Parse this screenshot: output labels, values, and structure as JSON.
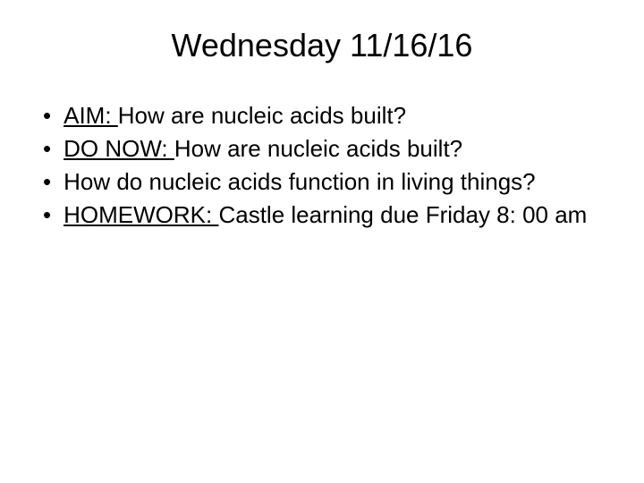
{
  "slide": {
    "title": "Wednesday 11/16/16",
    "bullets": [
      {
        "label": "AIM: ",
        "text": "How are nucleic acids built?"
      },
      {
        "label": "DO NOW: ",
        "text": "How are nucleic acids built?"
      },
      {
        "label": "",
        "text": "How do nucleic acids function in living things?"
      },
      {
        "label": "HOMEWORK: ",
        "text": "Castle learning due Friday 8: 00 am"
      }
    ],
    "styling": {
      "background_color": "#ffffff",
      "text_color": "#000000",
      "title_fontsize": 36,
      "body_fontsize": 26,
      "font_family": "Arial",
      "bullet_marker": "•"
    }
  }
}
